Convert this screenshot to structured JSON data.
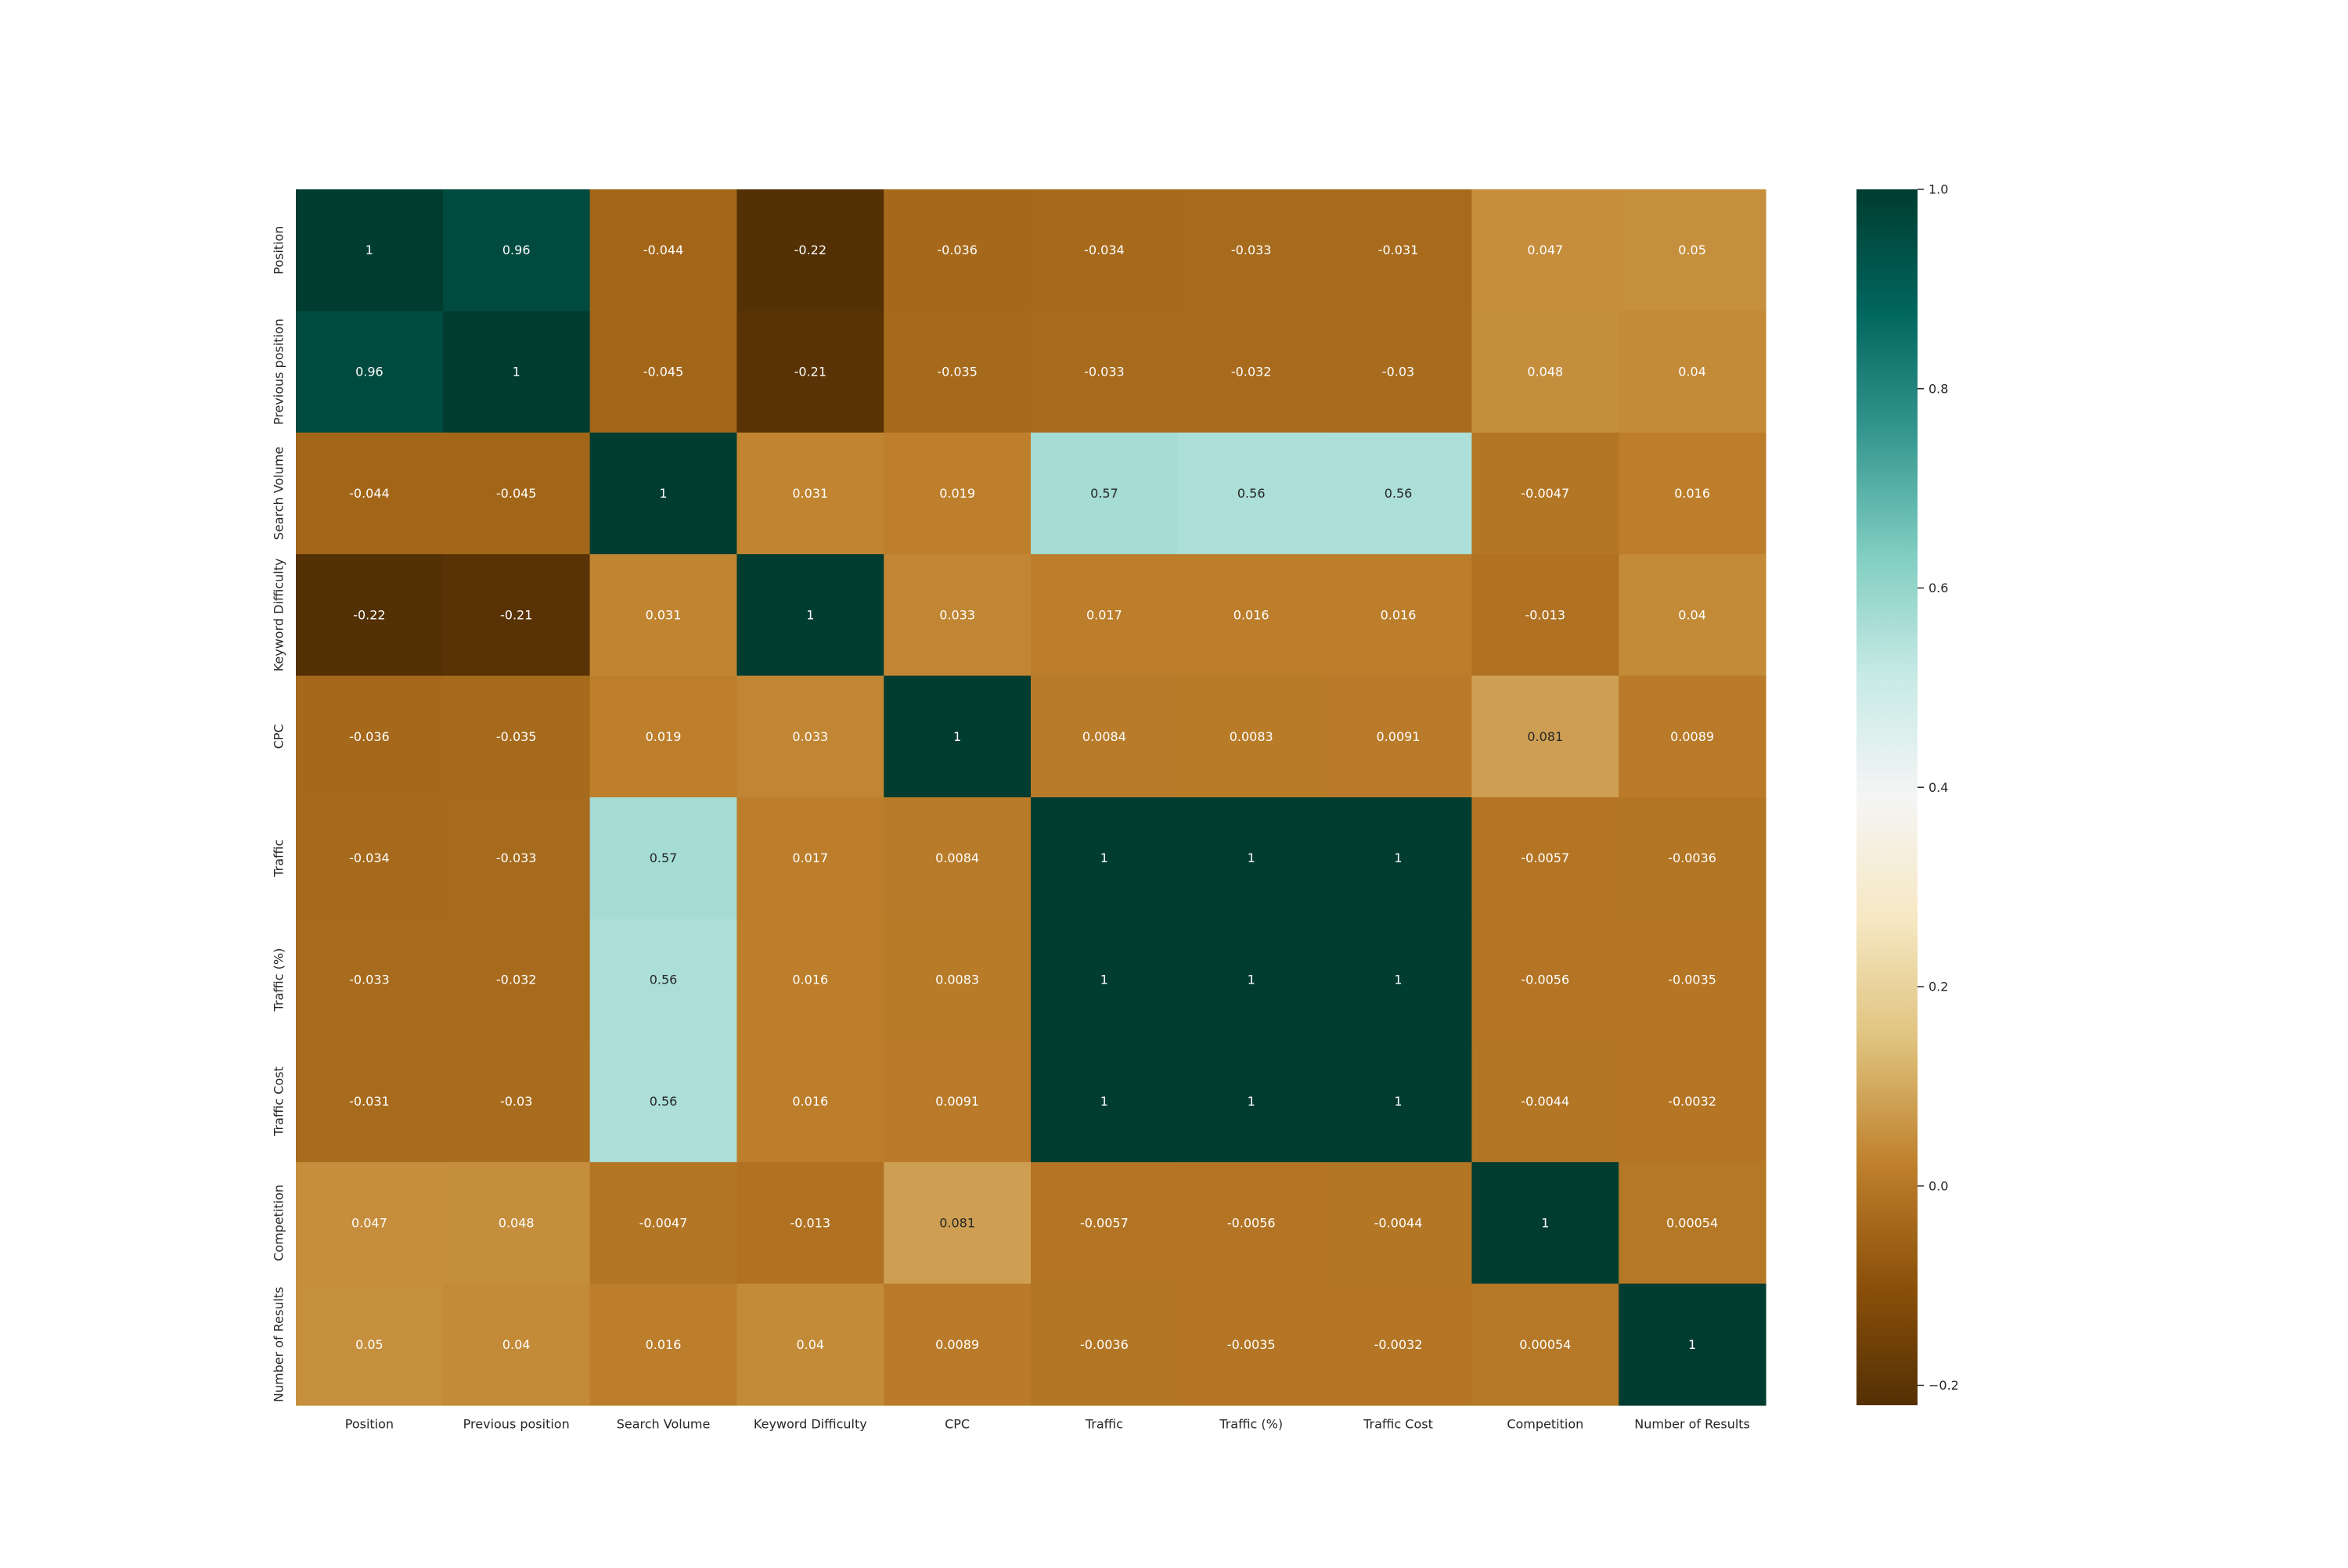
{
  "chart_data": {
    "type": "heatmap",
    "title": "",
    "xlabel": "",
    "ylabel": "",
    "colormap": "BrBG",
    "colormap_stops": [
      "#543005",
      "#8c510a",
      "#bf812d",
      "#dfc27d",
      "#f6e8c3",
      "#f5f5f5",
      "#c7eae5",
      "#80cdc1",
      "#35978f",
      "#01665e",
      "#003c30"
    ],
    "vmin": -0.22,
    "vmax": 1.0,
    "x_labels": [
      "Position",
      "Previous position",
      "Search Volume",
      "Keyword Difficulty",
      "CPC",
      "Traffic",
      "Traffic (%)",
      "Traffic Cost",
      "Competition",
      "Number of Results"
    ],
    "y_labels": [
      "Position",
      "Previous position",
      "Search Volume",
      "Keyword Difficulty",
      "CPC",
      "Traffic",
      "Traffic (%)",
      "Traffic Cost",
      "Competition",
      "Number of Results"
    ],
    "values": [
      [
        1,
        0.96,
        -0.044,
        -0.22,
        -0.036,
        -0.034,
        -0.033,
        -0.031,
        0.047,
        0.05
      ],
      [
        0.96,
        1,
        -0.045,
        -0.21,
        -0.035,
        -0.033,
        -0.032,
        -0.03,
        0.048,
        0.04
      ],
      [
        -0.044,
        -0.045,
        1,
        0.031,
        0.019,
        0.57,
        0.56,
        0.56,
        -0.0047,
        0.016
      ],
      [
        -0.22,
        -0.21,
        0.031,
        1,
        0.033,
        0.017,
        0.016,
        0.016,
        -0.013,
        0.04
      ],
      [
        -0.036,
        -0.035,
        0.019,
        0.033,
        1,
        0.0084,
        0.0083,
        0.0091,
        0.081,
        0.0089
      ],
      [
        -0.034,
        -0.033,
        0.57,
        0.017,
        0.0084,
        1,
        1,
        1,
        -0.0057,
        -0.0036
      ],
      [
        -0.033,
        -0.032,
        0.56,
        0.016,
        0.0083,
        1,
        1,
        1,
        -0.0056,
        -0.0035
      ],
      [
        -0.031,
        -0.03,
        0.56,
        0.016,
        0.0091,
        1,
        1,
        1,
        -0.0044,
        -0.0032
      ],
      [
        0.047,
        0.048,
        -0.0047,
        -0.013,
        0.081,
        -0.0057,
        -0.0056,
        -0.0044,
        1,
        0.00054
      ],
      [
        0.05,
        0.04,
        0.016,
        0.04,
        0.0089,
        -0.0036,
        -0.0035,
        -0.0032,
        0.00054,
        1
      ]
    ],
    "colorbar": {
      "ticks": [
        -0.2,
        0.0,
        0.2,
        0.4,
        0.6,
        0.8,
        1.0
      ],
      "tick_labels": [
        "−0.2",
        "0.0",
        "0.2",
        "0.4",
        "0.6",
        "0.8",
        "1.0"
      ]
    },
    "annotations": true,
    "grid": false
  }
}
